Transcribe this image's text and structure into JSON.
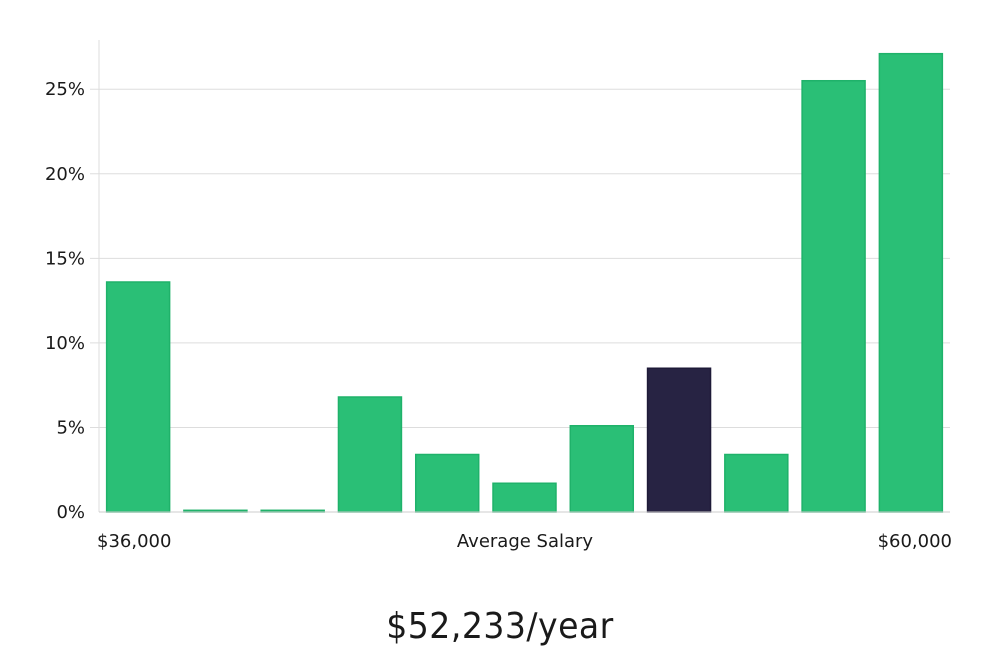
{
  "chart_data": {
    "type": "bar",
    "categories": [
      "1",
      "2",
      "3",
      "4",
      "5",
      "6",
      "7",
      "8",
      "9",
      "10",
      "11"
    ],
    "values": [
      13.6,
      0.1,
      0.1,
      6.8,
      3.4,
      1.7,
      5.1,
      8.5,
      3.4,
      25.5,
      27.1
    ],
    "highlight_index": 7,
    "ylim": [
      0,
      28.5
    ],
    "yticks": [
      0,
      5,
      10,
      15,
      20,
      25
    ],
    "ytick_labels": [
      "0%",
      "5%",
      "10%",
      "15%",
      "20%",
      "25%"
    ],
    "x_min_label": "$36,000",
    "x_max_label": "$60,000",
    "xlabel": "Average Salary",
    "grid": true,
    "colors": {
      "bar": "#2abf76",
      "bar_stroke": "#1fb26a",
      "highlight": "#272343",
      "grid": "#dddddd",
      "axis": "#cccccc"
    }
  },
  "salary": "$52,233/year"
}
